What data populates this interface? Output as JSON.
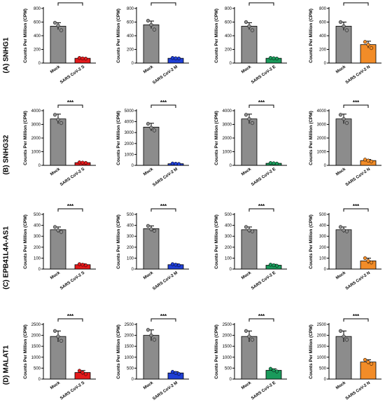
{
  "rows": [
    {
      "label": "(A) SNHG1"
    },
    {
      "label": "(B) SNHG32"
    },
    {
      "label": "(C) EPB41L4A-AS1"
    },
    {
      "label": "(D) MALAT1"
    }
  ],
  "colors": {
    "mock": "#8c8c8c",
    "S": "#e41a1c",
    "M": "#1f3fd6",
    "E": "#1a9a5b",
    "N": "#f28c28"
  },
  "chart_data": [
    {
      "type": "bar",
      "row": "(A) SNHG1",
      "ylabel": "Counts Per Million (CPM)",
      "categories": [
        "Mock",
        "SARS CoV-2 S"
      ],
      "values": [
        540,
        70
      ],
      "errors": [
        50,
        8
      ],
      "points": [
        [
          590,
          550,
          480
        ],
        [
          75,
          68,
          65
        ]
      ],
      "ylim": [
        0,
        800
      ],
      "yticks": [
        0,
        200,
        400,
        600,
        800
      ],
      "significance": "***",
      "bar_colors": [
        "#8c8c8c",
        "#e41a1c"
      ]
    },
    {
      "type": "bar",
      "row": "(A) SNHG1",
      "ylabel": "Counts Per Million (CPM)",
      "categories": [
        "Mock",
        "SARS CoV-2 M"
      ],
      "values": [
        560,
        70
      ],
      "errors": [
        55,
        8
      ],
      "points": [
        [
          620,
          560,
          490
        ],
        [
          75,
          70,
          68
        ]
      ],
      "ylim": [
        0,
        800
      ],
      "yticks": [
        0,
        200,
        400,
        600,
        800
      ],
      "significance": "***",
      "bar_colors": [
        "#8c8c8c",
        "#1f3fd6"
      ]
    },
    {
      "type": "bar",
      "row": "(A) SNHG1",
      "ylabel": "Counts Per Million (CPM)",
      "categories": [
        "Mock",
        "SARS CoV-2 E"
      ],
      "values": [
        540,
        70
      ],
      "errors": [
        50,
        8
      ],
      "points": [
        [
          600,
          540,
          480
        ],
        [
          75,
          70,
          66
        ]
      ],
      "ylim": [
        0,
        800
      ],
      "yticks": [
        0,
        200,
        400,
        600,
        800
      ],
      "significance": "***",
      "bar_colors": [
        "#8c8c8c",
        "#1a9a5b"
      ]
    },
    {
      "type": "bar",
      "row": "(A) SNHG1",
      "ylabel": "Counts Per Million (CPM)",
      "categories": [
        "Mock",
        "SARS CoV-2 N"
      ],
      "values": [
        540,
        270
      ],
      "errors": [
        60,
        50
      ],
      "points": [
        [
          600,
          540,
          480
        ],
        [
          310,
          270,
          220
        ]
      ],
      "ylim": [
        0,
        800
      ],
      "yticks": [
        0,
        200,
        400,
        600,
        800
      ],
      "significance": "***",
      "bar_colors": [
        "#8c8c8c",
        "#f28c28"
      ]
    },
    {
      "type": "bar",
      "row": "(B) SNHG32",
      "ylabel": "Counts Per Million (CPM)",
      "categories": [
        "Mock",
        "SARS CoV-2 S"
      ],
      "values": [
        3400,
        200
      ],
      "errors": [
        350,
        30
      ],
      "points": [
        [
          3700,
          3350,
          3100
        ],
        [
          220,
          200,
          180
        ]
      ],
      "ylim": [
        0,
        4000
      ],
      "yticks": [
        0,
        1000,
        2000,
        3000,
        4000
      ],
      "significance": "***",
      "bar_colors": [
        "#8c8c8c",
        "#e41a1c"
      ]
    },
    {
      "type": "bar",
      "row": "(B) SNHG32",
      "ylabel": "Counts Per Million (CPM)",
      "categories": [
        "Mock",
        "SARS CoV-2 M"
      ],
      "values": [
        3500,
        150
      ],
      "errors": [
        350,
        30
      ],
      "points": [
        [
          3800,
          3450,
          3200
        ],
        [
          170,
          150,
          130
        ]
      ],
      "ylim": [
        0,
        5000
      ],
      "yticks": [
        0,
        1000,
        2000,
        3000,
        4000,
        5000
      ],
      "significance": "***",
      "bar_colors": [
        "#8c8c8c",
        "#1f3fd6"
      ]
    },
    {
      "type": "bar",
      "row": "(B) SNHG32",
      "ylabel": "Counts Per Million (CPM)",
      "categories": [
        "Mock",
        "SARS CoV-2 E"
      ],
      "values": [
        3400,
        150
      ],
      "errors": [
        350,
        30
      ],
      "points": [
        [
          3700,
          3400,
          3100
        ],
        [
          170,
          150,
          130
        ]
      ],
      "ylim": [
        0,
        4000
      ],
      "yticks": [
        0,
        1000,
        2000,
        3000,
        4000
      ],
      "significance": "***",
      "bar_colors": [
        "#8c8c8c",
        "#1a9a5b"
      ]
    },
    {
      "type": "bar",
      "row": "(B) SNHG32",
      "ylabel": "Counts Per Million (CPM)",
      "categories": [
        "Mock",
        "SARS CoV-2 N"
      ],
      "values": [
        3400,
        350
      ],
      "errors": [
        350,
        80
      ],
      "points": [
        [
          3700,
          3400,
          3100
        ],
        [
          420,
          350,
          280
        ]
      ],
      "ylim": [
        0,
        4000
      ],
      "yticks": [
        0,
        1000,
        2000,
        3000,
        4000
      ],
      "significance": "***",
      "bar_colors": [
        "#8c8c8c",
        "#f28c28"
      ]
    },
    {
      "type": "bar",
      "row": "(C) EPB41L4A-AS1",
      "ylabel": "Counts Per Million (CPM)",
      "categories": [
        "Mock",
        "SARS CoV-2 S"
      ],
      "values": [
        360,
        40
      ],
      "errors": [
        25,
        8
      ],
      "points": [
        [
          385,
          355,
          340
        ],
        [
          45,
          40,
          35
        ]
      ],
      "ylim": [
        0,
        500
      ],
      "yticks": [
        0,
        100,
        200,
        300,
        400,
        500
      ],
      "significance": "***",
      "bar_colors": [
        "#8c8c8c",
        "#e41a1c"
      ]
    },
    {
      "type": "bar",
      "row": "(C) EPB41L4A-AS1",
      "ylabel": "Counts Per Million (CPM)",
      "categories": [
        "Mock",
        "SARS CoV-2 M"
      ],
      "values": [
        370,
        40
      ],
      "errors": [
        25,
        8
      ],
      "points": [
        [
          395,
          365,
          350
        ],
        [
          45,
          40,
          35
        ]
      ],
      "ylim": [
        0,
        500
      ],
      "yticks": [
        0,
        100,
        200,
        300,
        400,
        500
      ],
      "significance": "***",
      "bar_colors": [
        "#8c8c8c",
        "#1f3fd6"
      ]
    },
    {
      "type": "bar",
      "row": "(C) EPB41L4A-AS1",
      "ylabel": "Counts Per Million (CPM)",
      "categories": [
        "Mock",
        "SARS CoV-2 E"
      ],
      "values": [
        360,
        35
      ],
      "errors": [
        25,
        8
      ],
      "points": [
        [
          385,
          355,
          345
        ],
        [
          40,
          35,
          30
        ]
      ],
      "ylim": [
        0,
        500
      ],
      "yticks": [
        0,
        100,
        200,
        300,
        400,
        500
      ],
      "significance": "***",
      "bar_colors": [
        "#8c8c8c",
        "#1a9a5b"
      ]
    },
    {
      "type": "bar",
      "row": "(C) EPB41L4A-AS1",
      "ylabel": "Counts Per Million (CPM)",
      "categories": [
        "Mock",
        "SARS CoV-2 N"
      ],
      "values": [
        360,
        75
      ],
      "errors": [
        25,
        25
      ],
      "points": [
        [
          385,
          355,
          345
        ],
        [
          100,
          75,
          60
        ]
      ],
      "ylim": [
        0,
        500
      ],
      "yticks": [
        0,
        100,
        200,
        300,
        400,
        500
      ],
      "significance": "***",
      "bar_colors": [
        "#8c8c8c",
        "#f28c28"
      ]
    },
    {
      "type": "bar",
      "row": "(D) MALAT1",
      "ylabel": "Counts Per Million (CPM)",
      "categories": [
        "Mock",
        "SARS CoV-2 S"
      ],
      "values": [
        1950,
        300
      ],
      "errors": [
        250,
        90
      ],
      "points": [
        [
          2200,
          1950,
          1750
        ],
        [
          380,
          300,
          230
        ]
      ],
      "ylim": [
        0,
        2500
      ],
      "yticks": [
        0,
        500,
        1000,
        1500,
        2000,
        2500
      ],
      "significance": "***",
      "bar_colors": [
        "#8c8c8c",
        "#e41a1c"
      ]
    },
    {
      "type": "bar",
      "row": "(D) MALAT1",
      "ylabel": "Counts Per Million (CPM)",
      "categories": [
        "Mock",
        "SARS CoV-2 M"
      ],
      "values": [
        2000,
        280
      ],
      "errors": [
        250,
        60
      ],
      "points": [
        [
          2250,
          2000,
          1800
        ],
        [
          330,
          280,
          240
        ]
      ],
      "ylim": [
        0,
        2500
      ],
      "yticks": [
        0,
        500,
        1000,
        1500,
        2000,
        2500
      ],
      "significance": "***",
      "bar_colors": [
        "#8c8c8c",
        "#1f3fd6"
      ]
    },
    {
      "type": "bar",
      "row": "(D) MALAT1",
      "ylabel": "Counts Per Million (CPM)",
      "categories": [
        "Mock",
        "SARS CoV-2 E"
      ],
      "values": [
        1950,
        400
      ],
      "errors": [
        250,
        70
      ],
      "points": [
        [
          2200,
          1950,
          1800
        ],
        [
          470,
          400,
          350
        ]
      ],
      "ylim": [
        0,
        2500
      ],
      "yticks": [
        0,
        500,
        1000,
        1500,
        2000,
        2500
      ],
      "significance": "***",
      "bar_colors": [
        "#8c8c8c",
        "#1a9a5b"
      ]
    },
    {
      "type": "bar",
      "row": "(D) MALAT1",
      "ylabel": "Counts Per Million (CPM)",
      "categories": [
        "Mock",
        "SARS CoV-2 N"
      ],
      "values": [
        1950,
        780
      ],
      "errors": [
        250,
        100
      ],
      "points": [
        [
          2200,
          1950,
          1800
        ],
        [
          880,
          780,
          700
        ]
      ],
      "ylim": [
        0,
        2500
      ],
      "yticks": [
        0,
        500,
        1000,
        1500,
        2000,
        2500
      ],
      "significance": "***",
      "bar_colors": [
        "#8c8c8c",
        "#f28c28"
      ]
    }
  ]
}
